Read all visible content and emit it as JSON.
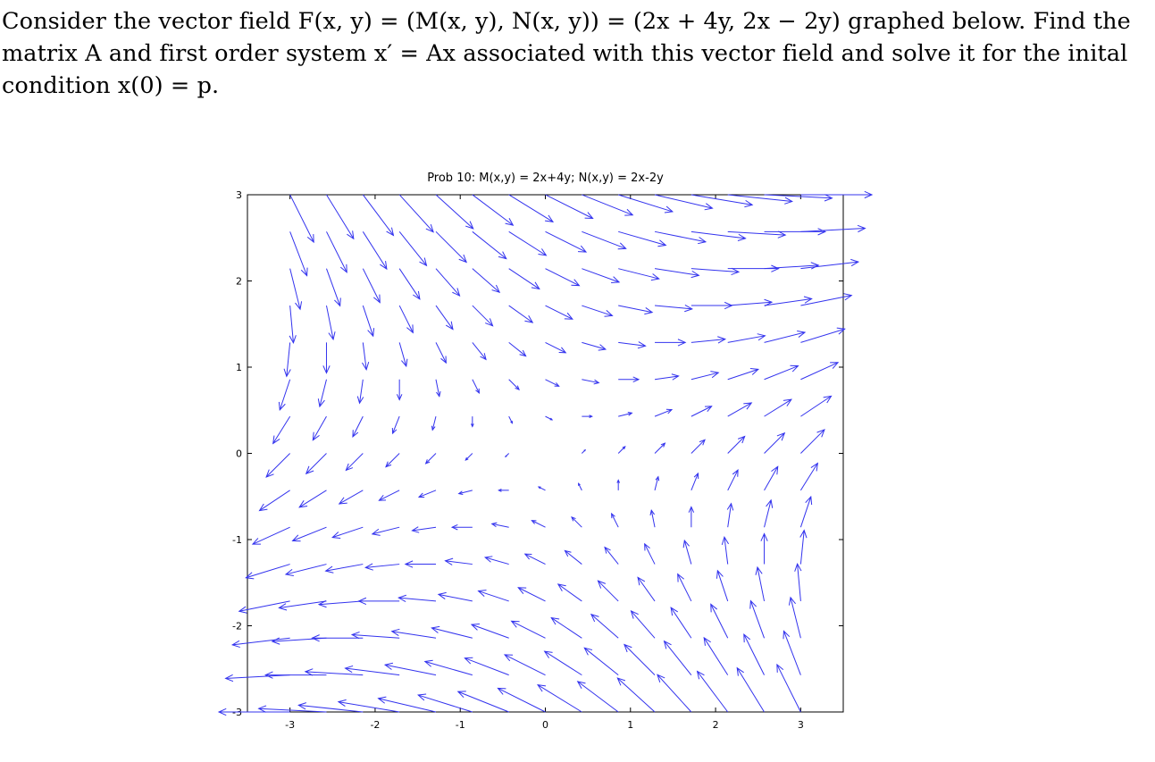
{
  "problem": {
    "lines": [
      "Consider the vector field F(x, y) = (M(x, y), N(x, y)) = (2x + 4y, 2x − 2y) graphed below. Find the",
      "matrix A and first order system x′ = Ax associated with this vector field and solve it for the inital",
      "condition x(0) = p."
    ]
  },
  "chart_data": {
    "type": "quiver",
    "title": "Prob 10: M(x,y) = 2x+4y; N(x,y) = 2x-2y",
    "field": {
      "M": "2x+4y",
      "N": "2x-2y"
    },
    "xlim": [
      -3.5,
      3.5
    ],
    "ylim": [
      -3.0,
      3.0
    ],
    "x_ticks": [
      -3,
      -2,
      -1,
      0,
      1,
      2,
      3
    ],
    "y_ticks": [
      -3,
      -2,
      -1,
      0,
      1,
      2,
      3
    ],
    "x_tick_labels": [
      "-3",
      "-2",
      "-1",
      "0",
      "1",
      "2",
      "3"
    ],
    "y_tick_labels": [
      "-3",
      "-2",
      "-1",
      "0",
      "1",
      "2",
      "3"
    ],
    "grid_x": {
      "start": -3.0,
      "step": 0.4286,
      "count": 15
    },
    "grid_y": {
      "start": -3.0,
      "step": 0.4286,
      "count": 15
    },
    "arrow_color": "#3333ee",
    "grid": false
  }
}
